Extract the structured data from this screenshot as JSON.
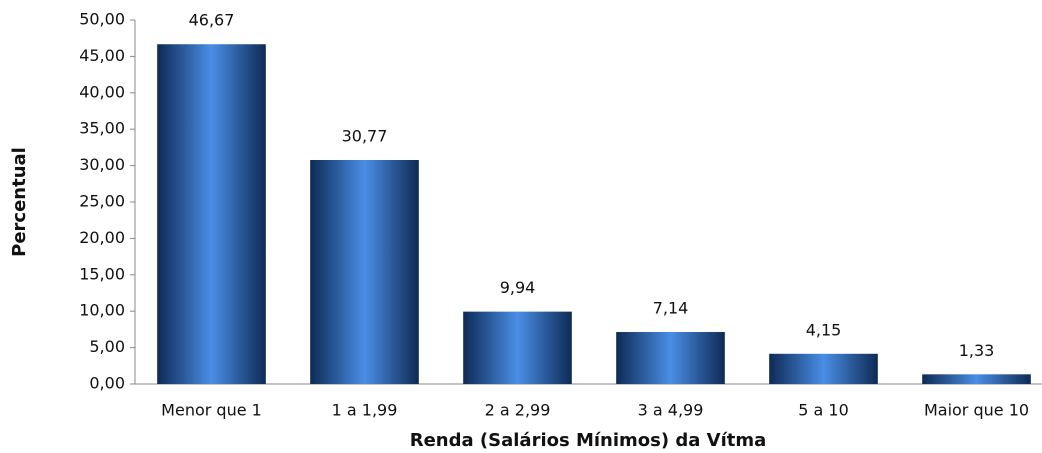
{
  "chart_data": {
    "type": "bar",
    "x_label": "Renda (Salários Mínimos) da Vítma",
    "y_label": "Percentual",
    "categories": [
      "Menor que 1",
      "1 a 1,99",
      "2 a 2,99",
      "3 a 4,99",
      "5 a 10",
      "Maior que 10"
    ],
    "values": [
      46.67,
      30.77,
      9.94,
      7.14,
      4.15,
      1.33
    ],
    "value_labels": [
      "46,67",
      "30,77",
      "9,94",
      "7,14",
      "4,15",
      "1,33"
    ],
    "color": "#4a8ee6",
    "ylim": [
      0,
      50
    ],
    "yticks": [
      {
        "value": 0,
        "label": "0,00"
      },
      {
        "value": 5,
        "label": "5,00"
      },
      {
        "value": 10,
        "label": "10,00"
      },
      {
        "value": 15,
        "label": "15,00"
      },
      {
        "value": 20,
        "label": "20,00"
      },
      {
        "value": 25,
        "label": "25,00"
      },
      {
        "value": 30,
        "label": "30,00"
      },
      {
        "value": 35,
        "label": "35,00"
      },
      {
        "value": 40,
        "label": "40,00"
      },
      {
        "value": 45,
        "label": "45,00"
      },
      {
        "value": 50,
        "label": "50,00"
      }
    ],
    "grid": false
  }
}
